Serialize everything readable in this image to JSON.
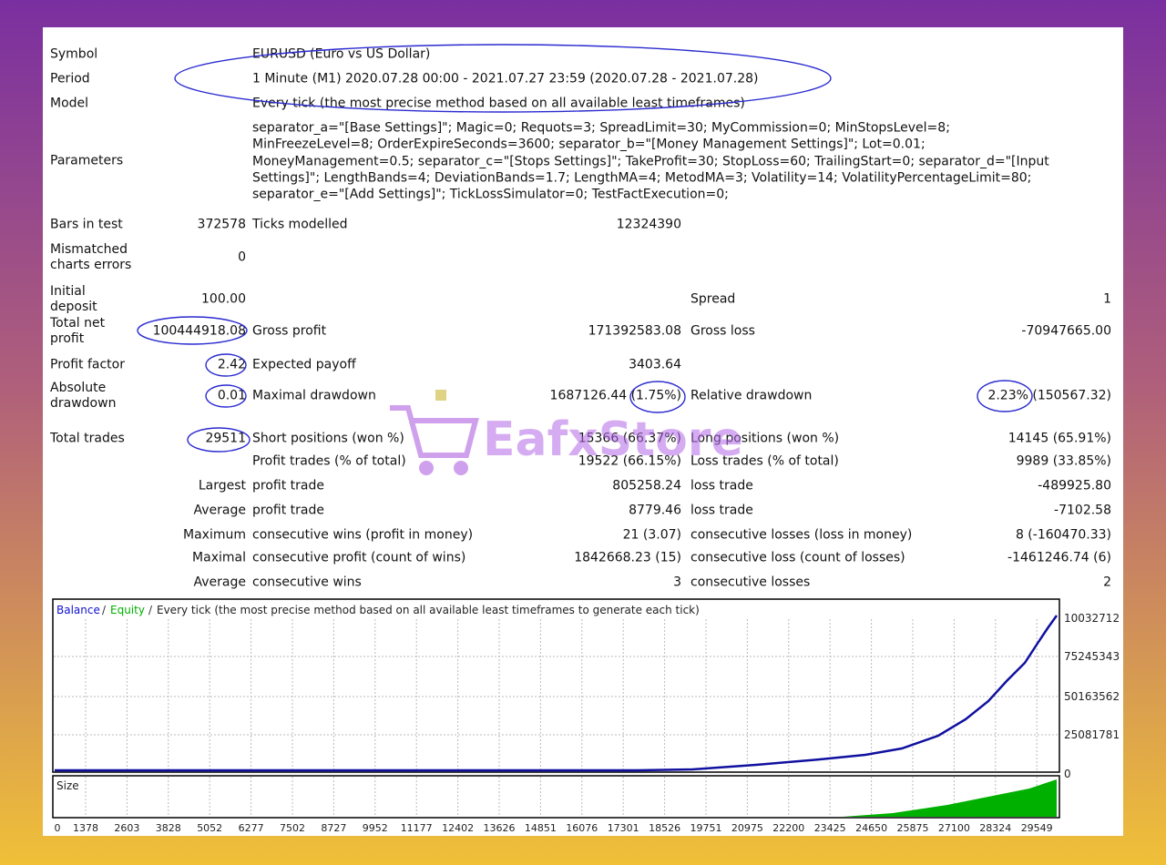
{
  "report": {
    "header": [
      {
        "label": "Symbol",
        "value": "EURUSD (Euro vs US Dollar)"
      },
      {
        "label": "Period",
        "value": "1 Minute (M1) 2020.07.28 00:00 - 2021.07.27 23:59 (2020.07.28 - 2021.07.28)"
      },
      {
        "label": "Model",
        "value": "Every tick (the most precise method based on all available least timeframes)"
      }
    ],
    "parameters": {
      "label": "Parameters",
      "lines": [
        "separator_a=\"[Base Settings]\"; Magic=0; Requots=3; SpreadLimit=30; MyCommission=0; MinStopsLevel=8;",
        "MinFreezeLevel=8; OrderExpireSeconds=3600; separator_b=\"[Money Management Settings]\"; Lot=0.01;",
        "MoneyManagement=0.5; separator_c=\"[Stops Settings]\"; TakeProfit=30; StopLoss=60; TrailingStart=0; separator_d=\"[Input",
        "Settings]\"; LengthBands=4; DeviationBands=1.7; LengthMA=4; MetodMA=3; Volatility=14; VolatilityPercentageLimit=80;",
        "separator_e=\"[Add Settings]\"; TickLossSimulator=0; TestFactExecution=0;"
      ]
    },
    "rows": [
      {
        "label": "Bars in test",
        "value": "372578",
        "label2": "Ticks modelled",
        "value2": "12324390"
      },
      {
        "label": "Mismatched charts errors",
        "value": "0"
      },
      {
        "label": "Initial deposit",
        "value": "100.00",
        "label3": "Spread",
        "value3": "1"
      },
      {
        "label": "Total net profit",
        "value": "100444918.08",
        "label2": "Gross profit",
        "value2": "171392583.08",
        "label3": "Gross loss",
        "value3": "-70947665.00"
      },
      {
        "label": "Profit factor",
        "value": "2.42",
        "label2": "Expected payoff",
        "value2": "3403.64"
      },
      {
        "label": "Absolute drawdown",
        "value": "0.01",
        "label2": "Maximal drawdown",
        "value2": "1687126.44 (1.75%)",
        "label3": "Relative drawdown",
        "value3": "2.23% (150567.32)"
      },
      {
        "label": "Total trades",
        "value": "29511",
        "label2": "Short positions (won %)",
        "value2": "15366 (66.37%)",
        "label3": "Long positions (won %)",
        "value3": "14145 (65.91%)"
      },
      {
        "label2": "Profit trades (% of total)",
        "value2": "19522 (66.15%)",
        "label3": "Loss trades (% of total)",
        "value3": "9989 (33.85%)"
      },
      {
        "group": "Largest",
        "label2": "profit trade",
        "value2": "805258.24",
        "label3": "loss trade",
        "value3": "-489925.80"
      },
      {
        "group": "Average",
        "label2": "profit trade",
        "value2": "8779.46",
        "label3": "loss trade",
        "value3": "-7102.58"
      },
      {
        "group": "Maximum",
        "label2": "consecutive wins (profit in money)",
        "value2": "21 (3.07)",
        "label3": "consecutive losses (loss in money)",
        "value3": "8 (-160470.33)"
      },
      {
        "group": "Maximal",
        "label2": "consecutive profit (count of wins)",
        "value2": "1842668.23 (15)",
        "label3": "consecutive loss (count of losses)",
        "value3": "-1461246.74 (6)"
      },
      {
        "group": "Average",
        "label2": "consecutive wins",
        "value2": "3",
        "label3": "consecutive losses",
        "value3": "2"
      }
    ],
    "graph": {
      "legend": {
        "balance": "Balance",
        "equity": "Equity",
        "model": "Every tick (the most precise method based on all available least timeframes to generate each tick)"
      },
      "y_labels": [
        "10032712",
        "75245343",
        "50163562",
        "25081781",
        "0"
      ],
      "size_label": "Size",
      "x_labels": [
        "0",
        "1378",
        "2603",
        "3828",
        "5052",
        "6277",
        "7502",
        "8727",
        "9952",
        "11177",
        "12402",
        "13626",
        "14851",
        "16076",
        "17301",
        "18526",
        "19751",
        "20975",
        "22200",
        "23425",
        "24650",
        "25875",
        "27100",
        "28324",
        "29549"
      ]
    },
    "watermark": "EafxStore"
  }
}
